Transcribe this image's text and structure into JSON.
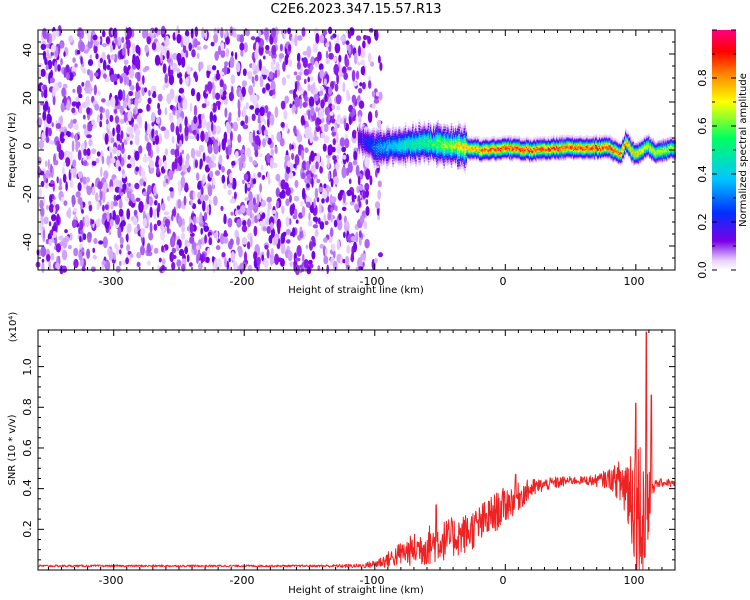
{
  "title": "C2E6.2023.347.15.57.R13",
  "chart_data": [
    {
      "type": "heatmap",
      "title": "C2E6.2023.347.15.57.R13",
      "xlabel": "Height of straight line (km)",
      "ylabel": "Frequency (Hz)",
      "xlim": [
        -358,
        130
      ],
      "ylim": [
        -50,
        50
      ],
      "xticks": [
        "-300",
        "-200",
        "-100",
        "0",
        "100"
      ],
      "yticks": [
        "40",
        "20",
        "0",
        "-20",
        "-40"
      ],
      "colorbar": {
        "label": "Normalized spectral amplitude",
        "range": [
          0,
          1
        ],
        "ticks": [
          "0.0",
          "0.2",
          "0.4",
          "0.6",
          "0.8"
        ],
        "colormap": [
          "#ffffff",
          "#7a00e6",
          "#0030ff",
          "#00c8ff",
          "#00ff60",
          "#ffff00",
          "#ff8000",
          "#ff0000",
          "#ff0080"
        ]
      },
      "noise_region": {
        "x_range": [
          -358,
          -95
        ],
        "y_range": [
          -50,
          50
        ],
        "typical_amplitude": 0.1
      },
      "signal_band": {
        "center_frequency": [
          [
            -113,
            5
          ],
          [
            -100,
            1
          ],
          [
            -80,
            2
          ],
          [
            -60,
            3
          ],
          [
            -45,
            2
          ],
          [
            -30,
            1
          ],
          [
            -15,
            0
          ],
          [
            0,
            1
          ],
          [
            20,
            0
          ],
          [
            40,
            1
          ],
          [
            60,
            1
          ],
          [
            80,
            1
          ],
          [
            88,
            -2
          ],
          [
            92,
            4
          ],
          [
            96,
            0
          ],
          [
            100,
            -2
          ],
          [
            108,
            2
          ],
          [
            115,
            -1
          ],
          [
            130,
            1
          ]
        ],
        "peak_amplitude": [
          [
            -113,
            0.15
          ],
          [
            -100,
            0.3
          ],
          [
            -80,
            0.45
          ],
          [
            -60,
            0.55
          ],
          [
            -40,
            0.7
          ],
          [
            -20,
            0.85
          ],
          [
            0,
            0.9
          ],
          [
            40,
            0.88
          ],
          [
            80,
            0.9
          ],
          [
            95,
            0.8
          ],
          [
            110,
            0.7
          ],
          [
            130,
            0.7
          ]
        ]
      }
    },
    {
      "type": "line",
      "xlabel": "Height of straight line (km)",
      "ylabel": "SNR (10 * v/v)",
      "y_scale_label": "(x10⁴)",
      "xlim": [
        -358,
        130
      ],
      "ylim": [
        0,
        1.18
      ],
      "xticks": [
        "-300",
        "-200",
        "-100",
        "0",
        "100"
      ],
      "yticks": [
        "0.2",
        "0.4",
        "0.6",
        "0.8",
        "1.0"
      ],
      "color": "#ee2222",
      "series": [
        {
          "x": [
            -358,
            -300,
            -250,
            -200,
            -150,
            -110,
            -100,
            -90,
            -80,
            -70,
            -60,
            -50,
            -40,
            -30,
            -20,
            -10,
            0,
            10,
            20,
            30,
            40,
            50,
            60,
            70,
            80,
            85,
            90,
            95,
            100,
            103,
            105,
            108,
            110,
            112,
            115,
            120,
            125,
            130
          ],
          "y": [
            0.02,
            0.02,
            0.02,
            0.02,
            0.02,
            0.02,
            0.03,
            0.05,
            0.08,
            0.1,
            0.12,
            0.14,
            0.16,
            0.18,
            0.22,
            0.27,
            0.32,
            0.36,
            0.4,
            0.42,
            0.43,
            0.44,
            0.44,
            0.44,
            0.45,
            0.44,
            0.42,
            0.4,
            0.35,
            0.3,
            0.25,
            0.3,
            0.35,
            0.42,
            0.42,
            0.43,
            0.43,
            0.42
          ],
          "noise_amplitude": [
            0.005,
            0.005,
            0.005,
            0.005,
            0.005,
            0.01,
            0.02,
            0.04,
            0.06,
            0.08,
            0.1,
            0.1,
            0.1,
            0.1,
            0.1,
            0.1,
            0.09,
            0.07,
            0.05,
            0.03,
            0.03,
            0.02,
            0.02,
            0.03,
            0.05,
            0.08,
            0.15,
            0.25,
            0.35,
            0.4,
            0.3,
            0.4,
            0.4,
            0.08,
            0.02,
            0.02,
            0.02,
            0.02
          ]
        }
      ],
      "peaks": [
        {
          "x": -53,
          "y": 0.32
        },
        {
          "x": 8,
          "y": 0.47
        },
        {
          "x": 100,
          "y": 0.82
        },
        {
          "x": 108,
          "y": 1.17
        },
        {
          "x": 112,
          "y": 0.86
        }
      ]
    }
  ]
}
